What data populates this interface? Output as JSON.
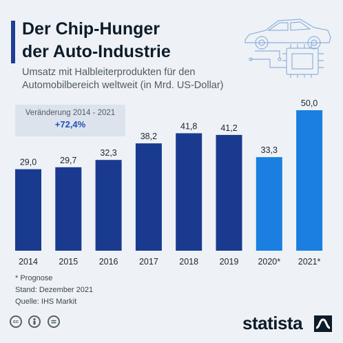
{
  "header": {
    "title_line1": "Der Chip-Hunger",
    "title_line2": "der Auto-Industrie",
    "subtitle_line1": "Umsatz mit Halbleiterprodukten für den",
    "subtitle_line2": "Automobilbereich weltweit (in Mrd. US-Dollar)"
  },
  "change_box": {
    "label": "Veränderung 2014 - 2021",
    "value": "+72,4%"
  },
  "chart_data": {
    "type": "bar",
    "categories": [
      "2014",
      "2015",
      "2016",
      "2017",
      "2018",
      "2019",
      "2020*",
      "2021*"
    ],
    "values": [
      29.0,
      29.7,
      32.3,
      38.2,
      41.8,
      41.2,
      33.3,
      50.0
    ],
    "value_labels": [
      "29,0",
      "29,7",
      "32,3",
      "38,2",
      "41,8",
      "41,2",
      "33,3",
      "50,0"
    ],
    "forecast": [
      false,
      false,
      false,
      false,
      false,
      false,
      true,
      true
    ],
    "ylim": [
      0,
      50
    ],
    "grid": false,
    "colors": {
      "actual": "#1a3a8f",
      "forecast": "#1a7fe0"
    }
  },
  "footer": {
    "note": "* Prognose",
    "stand": "Stand: Dezember 2021",
    "source": "Quelle: IHS Markit"
  },
  "license_icons": [
    "cc-icon",
    "person-icon",
    "equal-icon"
  ],
  "brand": {
    "name": "statista"
  }
}
